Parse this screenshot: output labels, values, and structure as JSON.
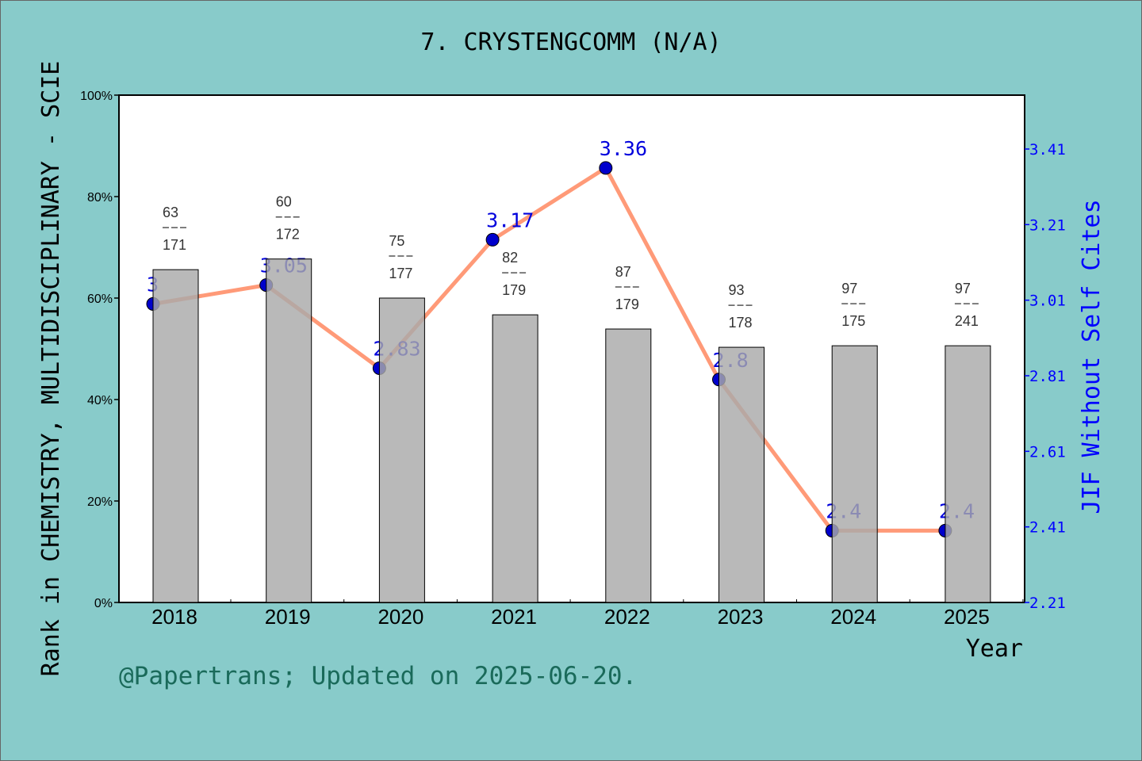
{
  "chart_data": {
    "type": "bar+line",
    "title": "7. CRYSTENGCOMM (N/A)",
    "xlabel": "Year",
    "ylabel_left": "Rank in CHEMISTRY, MULTIDISCIPLINARY - SCIE",
    "ylabel_right": "JIF Without Self Cites",
    "categories": [
      "2018",
      "2019",
      "2020",
      "2021",
      "2022",
      "2023",
      "2024",
      "2025"
    ],
    "left_axis": {
      "ylim": [
        0,
        100
      ],
      "ticks": [
        "0%",
        "20%",
        "40%",
        "60%",
        "80%",
        "100%"
      ]
    },
    "right_axis": {
      "ylim": [
        2.21,
        3.55
      ],
      "ticks": [
        "2.21",
        "2.41",
        "2.61",
        "2.81",
        "3.01",
        "3.21",
        "3.41"
      ]
    },
    "bars": {
      "values_percent": [
        65.6,
        67.7,
        60.0,
        56.7,
        53.9,
        50.3,
        50.6,
        50.6
      ],
      "rank": [
        "63",
        "60",
        "75",
        "82",
        "87",
        "93",
        "97",
        "97"
      ],
      "total": [
        "171",
        "172",
        "177",
        "179",
        "179",
        "178",
        "175",
        "241"
      ],
      "color": "#a9a9a9"
    },
    "line": {
      "values": [
        3,
        3.05,
        2.83,
        3.17,
        3.36,
        2.8,
        2.4,
        2.4
      ],
      "labels": [
        "3",
        "3.05",
        "2.83",
        "3.17",
        "3.36",
        "2.8",
        "2.4",
        "2.4"
      ],
      "line_color": "#ff9a78",
      "marker_color": "#0000cc"
    },
    "grid": false,
    "legend": "none"
  },
  "footer": "@Papertrans; Updated on 2025-06-20."
}
